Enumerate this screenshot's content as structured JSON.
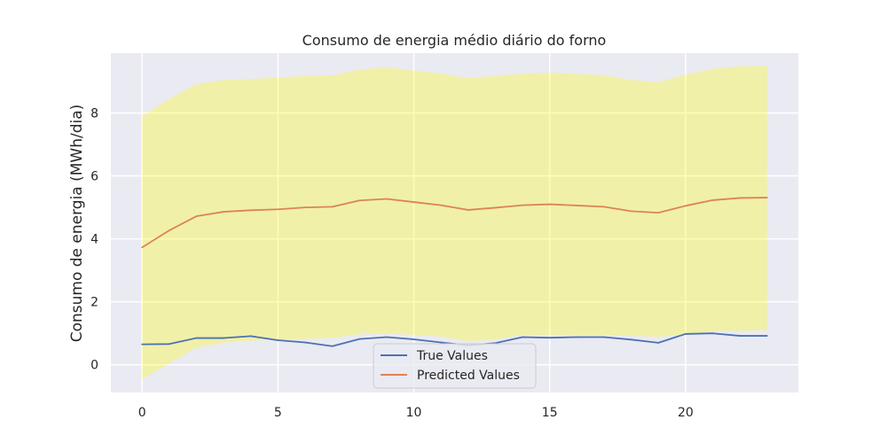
{
  "chart_data": {
    "type": "line",
    "title": "Consumo de energia médio diário do forno",
    "xlabel": "",
    "ylabel": "Consumo de energia (MWh/dia)",
    "xlim": [
      -1.15,
      24.15
    ],
    "ylim": [
      -0.88,
      9.9
    ],
    "x_ticks": [
      0,
      5,
      10,
      15,
      20
    ],
    "y_ticks": [
      0,
      2,
      4,
      6,
      8
    ],
    "grid": true,
    "legend_position": "bottom-center",
    "x": [
      0,
      1,
      2,
      3,
      4,
      5,
      6,
      7,
      8,
      9,
      10,
      11,
      12,
      13,
      14,
      15,
      16,
      17,
      18,
      19,
      20,
      21,
      22,
      23
    ],
    "series": [
      {
        "name": "True Values",
        "color": "#4c72b0",
        "values": [
          0.65,
          0.66,
          0.85,
          0.85,
          0.91,
          0.78,
          0.71,
          0.59,
          0.82,
          0.88,
          0.81,
          0.71,
          0.62,
          0.69,
          0.88,
          0.86,
          0.88,
          0.88,
          0.8,
          0.7,
          0.98,
          1.0,
          0.92,
          0.92
        ]
      },
      {
        "name": "Predicted Values",
        "color": "#dd8452",
        "values": [
          3.73,
          4.27,
          4.72,
          4.86,
          4.91,
          4.94,
          5.0,
          5.02,
          5.22,
          5.27,
          5.17,
          5.07,
          4.92,
          4.99,
          5.07,
          5.1,
          5.06,
          5.02,
          4.88,
          4.83,
          5.05,
          5.23,
          5.3,
          5.31
        ]
      }
    ],
    "interval": {
      "color": "#ffff00",
      "opacity": 0.3,
      "lower": [
        -0.45,
        0.05,
        0.55,
        0.7,
        0.77,
        0.8,
        0.82,
        0.85,
        0.97,
        1.0,
        0.95,
        0.9,
        0.75,
        0.8,
        0.95,
        0.95,
        0.95,
        0.95,
        0.92,
        0.89,
        0.95,
        1.08,
        1.08,
        1.1
      ],
      "upper": [
        7.9,
        8.45,
        8.92,
        9.05,
        9.08,
        9.12,
        9.18,
        9.2,
        9.38,
        9.45,
        9.35,
        9.25,
        9.1,
        9.18,
        9.25,
        9.28,
        9.24,
        9.2,
        9.05,
        8.98,
        9.22,
        9.4,
        9.48,
        9.5
      ]
    }
  }
}
